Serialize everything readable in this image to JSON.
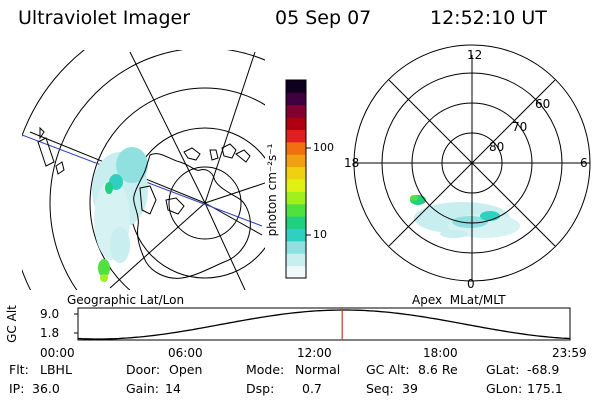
{
  "header": {
    "title": "Ultraviolet Imager",
    "date": "05 Sep 07",
    "time": "12:52:10 UT"
  },
  "left_panel": {
    "caption": "Geographic Lat/Lon"
  },
  "right_panel": {
    "caption": "Apex  MLat/MLT",
    "mlt_labels": [
      "12",
      "18",
      "6",
      "0"
    ],
    "lat_labels": [
      "60",
      "70",
      "80"
    ]
  },
  "colorbar": {
    "unit_label": "photon cm⁻²s⁻¹",
    "tick_labels": [
      "100",
      "10"
    ],
    "colors": [
      "#f0f8f8",
      "#c8eef0",
      "#90e0e0",
      "#30d0c0",
      "#20d080",
      "#50e040",
      "#a0f020",
      "#e0f010",
      "#f0d010",
      "#f0a010",
      "#f07010",
      "#e02020",
      "#b00010",
      "#800030",
      "#400040",
      "#100020"
    ]
  },
  "altitude_plot": {
    "ylabel": "GC Alt",
    "y_ticks": [
      "9.0",
      "1.8"
    ],
    "x_ticks": [
      "00:00",
      "06:00",
      "12:00",
      "18:00",
      "23:59"
    ],
    "current_time_fraction": 0.537,
    "marker_color": "#c04020"
  },
  "info": {
    "row1": [
      {
        "label": "Flt:",
        "value": "LBHL"
      },
      {
        "label": "Door:",
        "value": "Open"
      },
      {
        "label": "Mode:",
        "value": "Normal"
      },
      {
        "label": "GC Alt:",
        "value": "8.6 Re"
      },
      {
        "label": "GLat:",
        "value": "-68.9"
      }
    ],
    "row2": [
      {
        "label": "IP:",
        "value": "36.0"
      },
      {
        "label": "Gain:",
        "value": "14"
      },
      {
        "label": "Dsp:",
        "value": "0.7"
      },
      {
        "label": "Seq:",
        "value": "39"
      },
      {
        "label": "GLon:",
        "value": "175.1"
      }
    ]
  }
}
